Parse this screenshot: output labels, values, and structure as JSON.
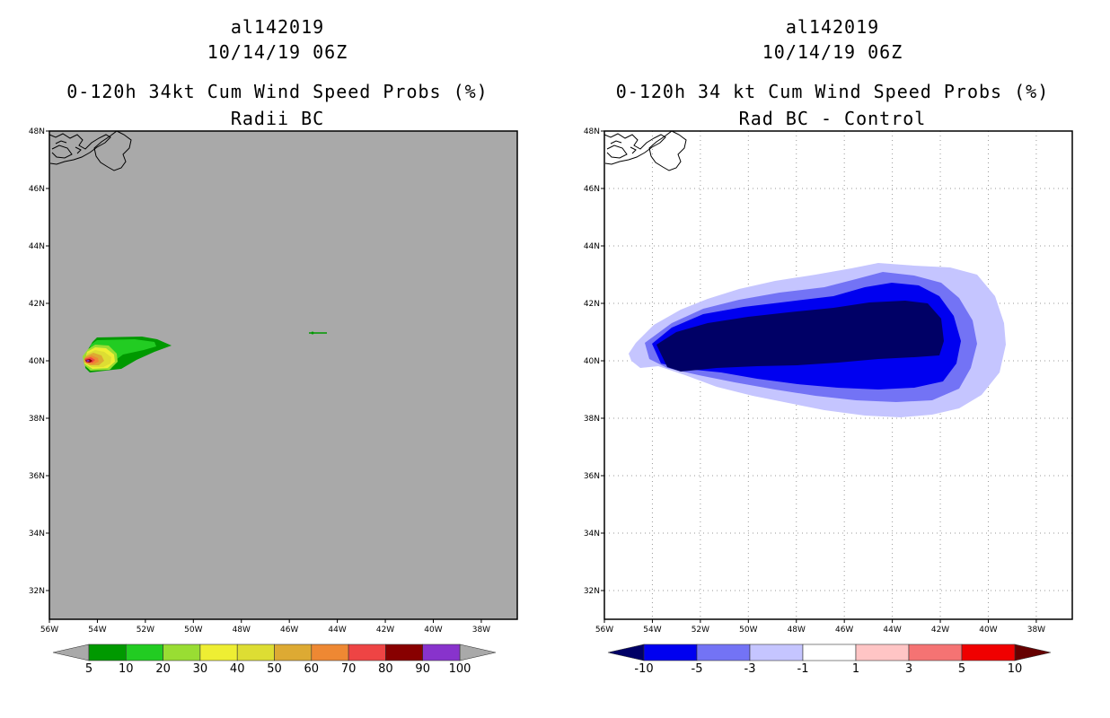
{
  "panels": {
    "left": {
      "storm_id": "al142019",
      "datetime": "10/14/19 06Z",
      "product_title": "0-120h 34kt Cum Wind Speed Probs (%)",
      "subtitle": "Radii BC",
      "map_background": "#a9a9a9",
      "colorbar": {
        "labels": [
          "5",
          "10",
          "20",
          "30",
          "40",
          "50",
          "60",
          "70",
          "80",
          "90",
          "100"
        ],
        "colors": [
          "#009900",
          "#22cc22",
          "#99dd33",
          "#eeee33",
          "#dddd33",
          "#ddaa33",
          "#ee8833",
          "#ee4444",
          "#880000",
          "#8833cc"
        ],
        "under_color": "#a9a9a9",
        "over_color": "#a9a9a9"
      }
    },
    "right": {
      "storm_id": "al142019",
      "datetime": "10/14/19 06Z",
      "product_title": "0-120h 34 kt Cum Wind Speed Probs (%)",
      "subtitle": "Rad BC - Control",
      "map_background": "#ffffff",
      "colorbar": {
        "labels": [
          "-10",
          "-5",
          "-3",
          "-1",
          "1",
          "3",
          "5",
          "10"
        ],
        "colors": [
          "#0000f0",
          "#7373f5",
          "#c5c5ff",
          "#ffffff",
          "#ffc5c5",
          "#f57373",
          "#f00000"
        ],
        "under_color": "#000066",
        "over_color": "#660000"
      }
    }
  },
  "axes": {
    "lon_labels": [
      "56W",
      "54W",
      "52W",
      "50W",
      "48W",
      "46W",
      "44W",
      "42W",
      "40W",
      "38W"
    ],
    "lat_labels": [
      "48N",
      "46N",
      "44N",
      "42N",
      "40N",
      "38N",
      "36N",
      "34N",
      "32N"
    ]
  },
  "map_extent": {
    "lon_min": -56,
    "lon_max": -36.5,
    "lat_min": 31,
    "lat_max": 48
  }
}
